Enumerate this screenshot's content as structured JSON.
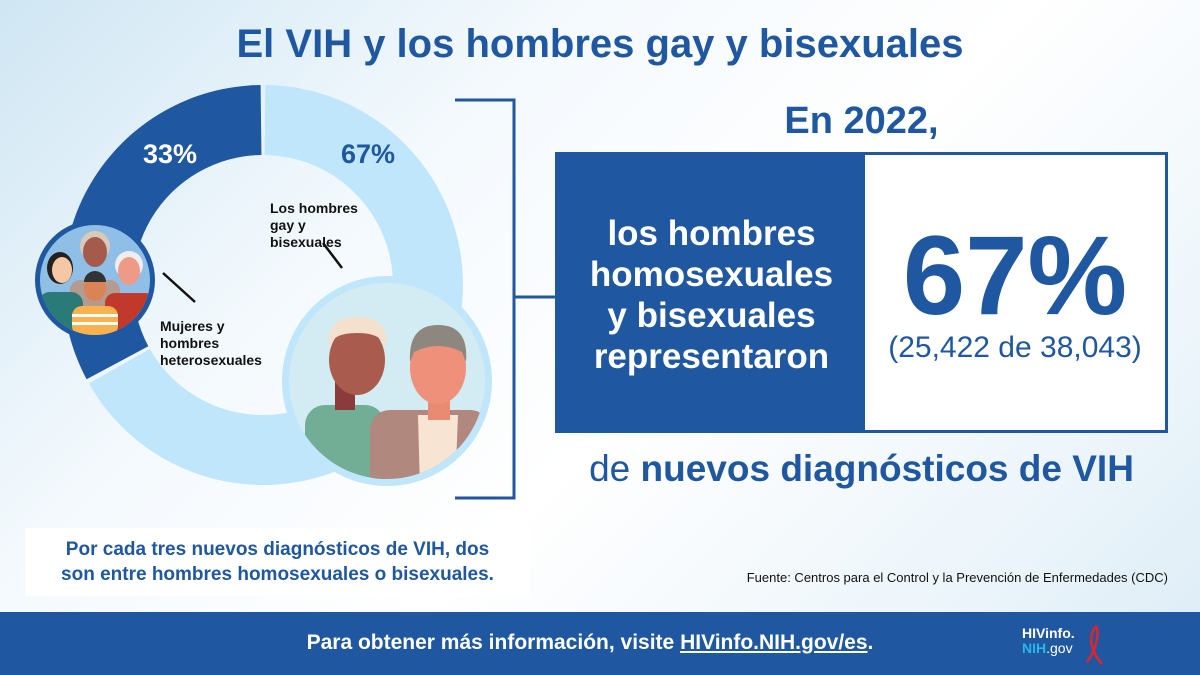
{
  "title": "El VIH y los hombres gay y bisexuales",
  "chart_data": {
    "type": "pie",
    "variant": "donut",
    "slices": [
      {
        "label": "Mujeres y hombres heterosexuales",
        "value": 33,
        "value_label": "33%",
        "color": "#1f57a0"
      },
      {
        "label": "Los hombres gay y bisexuales",
        "value": 67,
        "value_label": "67%",
        "color": "#bfe6fb"
      }
    ],
    "labels_text": {
      "hetero": [
        "Mujeres y",
        "hombres",
        "heterosexuales"
      ],
      "gay": [
        "Los hombres",
        "gay y",
        "bisexuales"
      ]
    }
  },
  "stat": {
    "year": "En 2022,",
    "description": [
      "los hombres",
      "homosexuales",
      "y bisexuales",
      "representaron"
    ],
    "percent": "67%",
    "count": "(25,422 de 38,043)",
    "suffix_light": "de ",
    "suffix_bold": "nuevos diagnósticos de VIH"
  },
  "caption": [
    "Por cada tres nuevos diagnósticos de VIH, dos",
    "son entre hombres homosexuales o bisexuales."
  ],
  "source": "Fuente: Centros para el Control y la Prevención de Enfermedades (CDC)",
  "footer": {
    "text": "Para obtener más información, visite ",
    "link": "HIVinfo.NIH.gov/es",
    "end": ".",
    "logo": [
      "HIVinfo.",
      "NIH",
      ".gov"
    ]
  },
  "colors": {
    "primary": "#1f57a0",
    "light": "#bfe6fb",
    "ribbon": "#e0242b"
  }
}
